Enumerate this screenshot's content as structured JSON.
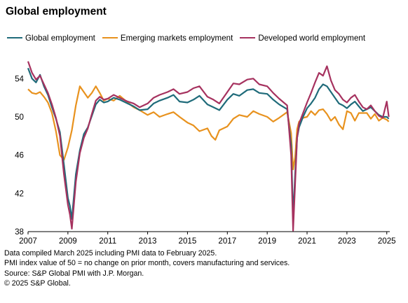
{
  "chart_data": {
    "type": "line",
    "title": "Global employment",
    "xlabel": "",
    "ylabel": "",
    "xlim": [
      2007.0,
      2025.15
    ],
    "ylim": [
      38,
      56
    ],
    "x_ticks": [
      "2007",
      "2009",
      "2011",
      "2013",
      "2015",
      "2017",
      "2019",
      "2021",
      "2023",
      "2025"
    ],
    "y_ticks": [
      "38",
      "42",
      "46",
      "50",
      "54"
    ],
    "grid": "none",
    "legend_position": "top",
    "series": [
      {
        "name": "Global employment",
        "color": "#1f6b7a",
        "x": [
          2007.0,
          2007.2,
          2007.4,
          2007.6,
          2007.8,
          2008.0,
          2008.2,
          2008.4,
          2008.6,
          2008.8,
          2009.0,
          2009.1,
          2009.2,
          2009.4,
          2009.6,
          2009.8,
          2010.0,
          2010.2,
          2010.4,
          2010.6,
          2010.8,
          2011.0,
          2011.3,
          2011.6,
          2012.0,
          2012.3,
          2012.6,
          2013.0,
          2013.3,
          2013.6,
          2014.0,
          2014.3,
          2014.6,
          2015.0,
          2015.3,
          2015.6,
          2016.0,
          2016.3,
          2016.6,
          2017.0,
          2017.3,
          2017.6,
          2018.0,
          2018.3,
          2018.6,
          2019.0,
          2019.3,
          2019.6,
          2020.0,
          2020.2,
          2020.3,
          2020.4,
          2020.5,
          2020.6,
          2020.8,
          2021.0,
          2021.2,
          2021.4,
          2021.6,
          2021.8,
          2022.0,
          2022.2,
          2022.4,
          2022.6,
          2022.8,
          2023.0,
          2023.2,
          2023.4,
          2023.6,
          2023.8,
          2024.0,
          2024.2,
          2024.4,
          2024.6,
          2024.8,
          2025.0,
          2025.1
        ],
        "values": [
          55.1,
          54.0,
          53.6,
          54.4,
          53.2,
          52.3,
          51.0,
          49.8,
          48.4,
          45.0,
          41.5,
          40.7,
          39.3,
          44.0,
          46.5,
          48.2,
          48.9,
          50.1,
          51.3,
          51.8,
          51.5,
          51.6,
          52.0,
          51.8,
          51.4,
          51.1,
          50.7,
          50.8,
          51.4,
          51.7,
          52.0,
          52.3,
          51.6,
          51.5,
          51.8,
          52.2,
          51.3,
          51.0,
          50.7,
          51.8,
          52.4,
          52.2,
          52.8,
          52.9,
          52.5,
          52.4,
          51.8,
          51.3,
          50.8,
          47.0,
          39.5,
          44.0,
          47.8,
          48.9,
          50.0,
          50.9,
          51.4,
          52.0,
          52.9,
          53.4,
          53.2,
          52.6,
          52.0,
          51.4,
          51.2,
          50.9,
          51.3,
          51.6,
          51.1,
          50.6,
          50.8,
          51.0,
          50.6,
          50.2,
          50.0,
          50.0,
          49.8
        ]
      },
      {
        "name": "Emerging markets employment",
        "color": "#e8921e",
        "x": [
          2007.0,
          2007.2,
          2007.4,
          2007.6,
          2007.8,
          2008.0,
          2008.2,
          2008.4,
          2008.6,
          2008.8,
          2009.0,
          2009.2,
          2009.4,
          2009.6,
          2009.8,
          2010.0,
          2010.2,
          2010.4,
          2010.6,
          2010.8,
          2011.0,
          2011.3,
          2011.6,
          2012.0,
          2012.3,
          2012.6,
          2013.0,
          2013.3,
          2013.6,
          2014.0,
          2014.3,
          2014.6,
          2015.0,
          2015.3,
          2015.6,
          2016.0,
          2016.2,
          2016.4,
          2016.6,
          2017.0,
          2017.3,
          2017.6,
          2018.0,
          2018.3,
          2018.6,
          2019.0,
          2019.3,
          2019.6,
          2020.0,
          2020.2,
          2020.3,
          2020.4,
          2020.5,
          2020.6,
          2020.8,
          2021.0,
          2021.2,
          2021.4,
          2021.6,
          2021.8,
          2022.0,
          2022.2,
          2022.4,
          2022.6,
          2022.8,
          2023.0,
          2023.2,
          2023.4,
          2023.6,
          2023.8,
          2024.0,
          2024.2,
          2024.4,
          2024.6,
          2024.8,
          2025.0,
          2025.1
        ],
        "values": [
          52.9,
          52.5,
          52.4,
          52.6,
          52.1,
          51.5,
          50.4,
          48.5,
          46.0,
          45.5,
          46.8,
          48.6,
          51.2,
          53.2,
          52.6,
          52.0,
          52.5,
          53.2,
          52.5,
          51.7,
          51.9,
          51.7,
          52.2,
          51.5,
          51.0,
          50.7,
          50.2,
          50.5,
          50.0,
          50.3,
          50.5,
          50.0,
          49.4,
          49.1,
          48.5,
          48.8,
          48.0,
          47.6,
          48.6,
          49.0,
          49.8,
          50.2,
          50.0,
          50.6,
          50.3,
          50.0,
          49.5,
          49.9,
          50.5,
          48.3,
          44.5,
          45.8,
          48.7,
          49.5,
          49.9,
          50.0,
          50.6,
          50.2,
          50.7,
          50.8,
          50.3,
          49.6,
          50.0,
          49.2,
          48.7,
          50.6,
          50.4,
          49.6,
          50.4,
          50.4,
          50.4,
          49.8,
          50.3,
          49.6,
          49.9,
          49.7,
          49.5
        ]
      },
      {
        "name": "Developed world employment",
        "color": "#a6325f",
        "x": [
          2007.0,
          2007.2,
          2007.4,
          2007.6,
          2007.8,
          2008.0,
          2008.2,
          2008.4,
          2008.6,
          2008.8,
          2009.0,
          2009.1,
          2009.2,
          2009.4,
          2009.6,
          2009.8,
          2010.0,
          2010.2,
          2010.4,
          2010.6,
          2010.8,
          2011.0,
          2011.3,
          2011.6,
          2012.0,
          2012.3,
          2012.6,
          2013.0,
          2013.3,
          2013.6,
          2014.0,
          2014.3,
          2014.6,
          2015.0,
          2015.3,
          2015.6,
          2016.0,
          2016.3,
          2016.6,
          2017.0,
          2017.3,
          2017.6,
          2018.0,
          2018.3,
          2018.6,
          2019.0,
          2019.3,
          2019.6,
          2020.0,
          2020.2,
          2020.3,
          2020.4,
          2020.5,
          2020.6,
          2020.8,
          2021.0,
          2021.2,
          2021.4,
          2021.6,
          2021.8,
          2022.0,
          2022.2,
          2022.4,
          2022.6,
          2022.8,
          2023.0,
          2023.2,
          2023.4,
          2023.6,
          2023.8,
          2024.0,
          2024.2,
          2024.4,
          2024.6,
          2024.8,
          2025.0,
          2025.1
        ],
        "values": [
          55.8,
          54.6,
          53.9,
          54.3,
          53.4,
          52.5,
          51.3,
          49.9,
          48.0,
          44.0,
          40.8,
          39.8,
          38.3,
          43.2,
          46.2,
          47.8,
          48.8,
          50.3,
          51.7,
          52.1,
          51.8,
          51.9,
          52.3,
          52.0,
          51.6,
          51.4,
          51.0,
          51.4,
          52.0,
          52.3,
          52.6,
          52.9,
          52.4,
          52.6,
          53.0,
          53.2,
          52.1,
          51.8,
          51.4,
          52.6,
          53.5,
          53.4,
          53.9,
          54.0,
          53.4,
          53.2,
          52.5,
          51.9,
          51.2,
          46.0,
          38.1,
          43.0,
          47.8,
          49.3,
          50.4,
          51.5,
          52.5,
          53.6,
          54.6,
          54.3,
          55.3,
          53.8,
          52.8,
          52.4,
          51.8,
          51.5,
          52.0,
          52.3,
          51.6,
          51.0,
          50.8,
          51.2,
          50.6,
          50.1,
          49.9,
          51.6,
          50.0
        ]
      }
    ],
    "notes": [
      "Data compiled March 2025 including PMI data to February 2025.",
      "PMI index value of 50 = no change on prior month, covers manufacturing and services.",
      "Source: S&P Global PMI with J.P. Morgan.",
      "© 2025 S&P Global."
    ]
  }
}
